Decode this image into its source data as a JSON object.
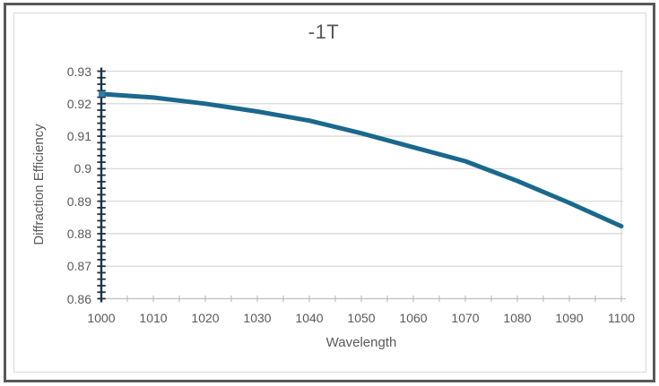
{
  "chart": {
    "title": "-1T",
    "x_axis_title": "Wavelength",
    "y_axis_title": "Diffraction Efficiency"
  },
  "chart_data": {
    "type": "line",
    "title": "-1T",
    "xlabel": "Wavelength",
    "ylabel": "Diffraction Efficiency",
    "x": [
      1000,
      1010,
      1020,
      1030,
      1040,
      1050,
      1060,
      1070,
      1080,
      1090,
      1100
    ],
    "series": [
      {
        "name": "-1T",
        "values": [
          0.923,
          0.9219,
          0.92,
          0.9176,
          0.9148,
          0.9109,
          0.9066,
          0.9023,
          0.8962,
          0.8895,
          0.8823
        ]
      }
    ],
    "xlim": [
      1000,
      1100
    ],
    "ylim": [
      0.86,
      0.93
    ],
    "x_tick_labels": [
      "1000",
      "1010",
      "1020",
      "1030",
      "1040",
      "1050",
      "1060",
      "1070",
      "1080",
      "1090",
      "1100"
    ],
    "y_tick_labels": [
      "0.86",
      "0.87",
      "0.88",
      "0.89",
      "0.9",
      "0.91",
      "0.92",
      "0.93"
    ],
    "x_major_step": 10,
    "x_minor_tick_step": 5,
    "y_major_step": 0.01,
    "y_minor_tick_step": 0.002,
    "grid": "horizontal-major",
    "legend_position": "none",
    "marker_on_first_point": true
  },
  "colors": {
    "series_line": "#1a688c",
    "series_marker": "#2f81aa",
    "y_axis": "#1c3347",
    "x_axis": "#bfbfbf",
    "gridline": "#d9d9d9",
    "plot_right_border": "#d9d9d9",
    "text": "#595959",
    "title_text": "#575757",
    "outer_border": "#595959",
    "inner_border": "#dadada",
    "background": "#ffffff"
  }
}
